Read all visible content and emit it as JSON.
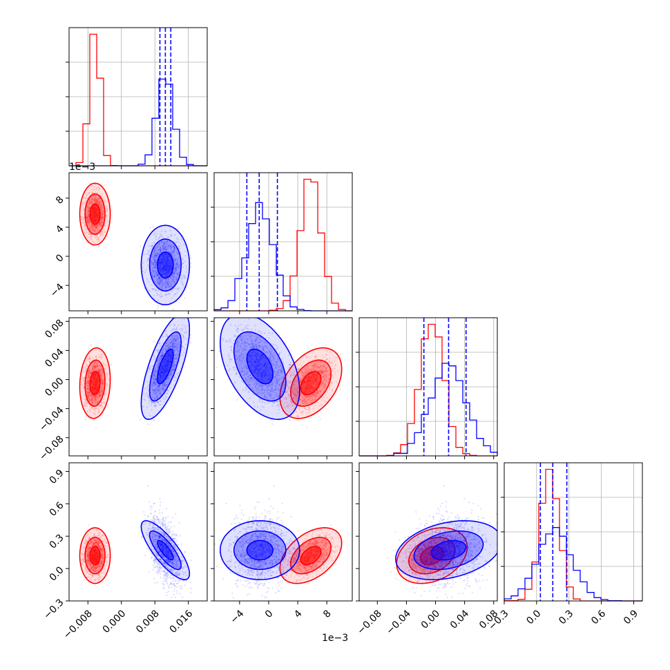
{
  "chart_data": {
    "type": "corner",
    "series": [
      {
        "color": "#ff0000",
        "means": [
          -0.0063,
          0.0058,
          -0.005,
          0.12
        ],
        "sds": [
          0.0012,
          0.0014,
          0.016,
          0.085
        ]
      },
      {
        "color": "#0000ff",
        "means": [
          0.0105,
          -0.0012,
          0.018,
          0.17
        ],
        "sds": [
          0.0019,
          0.0018,
          0.024,
          0.09
        ]
      }
    ],
    "correlations": {
      "red": {
        "1-0": 0.0,
        "2-0": 0.1,
        "2-1": 0.4,
        "3-0": 0.0,
        "3-1": 0.45,
        "3-2": 0.3
      },
      "blue": {
        "1-0": 0.0,
        "2-0": 0.7,
        "2-1": -0.45,
        "3-0": -0.8,
        "3-1": 0.0,
        "3-2": 0.3
      }
    },
    "quantiles_blue": [
      [
        0.0092,
        0.0105,
        0.0118
      ],
      [
        -0.003,
        -0.0013,
        0.0012
      ],
      [
        -0.016,
        0.018,
        0.042
      ],
      [
        0.035,
        0.15,
        0.28
      ]
    ],
    "ranges": [
      [
        -0.0125,
        0.0205
      ],
      [
        -0.0075,
        0.0115
      ],
      [
        -0.105,
        0.085
      ],
      [
        -0.3,
        0.98
      ]
    ],
    "ticks": [
      {
        "values": [
          -0.008,
          0.0,
          0.008,
          0.016
        ],
        "labels": [
          "−0.008",
          "0.000",
          "0.008",
          "0.016"
        ]
      },
      {
        "values": [
          -0.004,
          0.0,
          0.004,
          0.008
        ],
        "labels": [
          "−4",
          "0",
          "4",
          "8"
        ]
      },
      {
        "values": [
          -0.08,
          -0.04,
          0.0,
          0.04,
          0.08
        ],
        "labels": [
          "−0.08",
          "−0.04",
          "0.00",
          "0.04",
          "0.08"
        ]
      },
      {
        "values": [
          -0.3,
          0.0,
          0.3,
          0.6,
          0.9
        ],
        "labels": [
          "−0.3",
          "0.0",
          "0.3",
          "0.6",
          "0.9"
        ]
      }
    ],
    "offset_text": [
      "",
      "1e−3",
      "",
      ""
    ],
    "grid": true,
    "levels": [
      0.39,
      0.86,
      0.99
    ]
  }
}
